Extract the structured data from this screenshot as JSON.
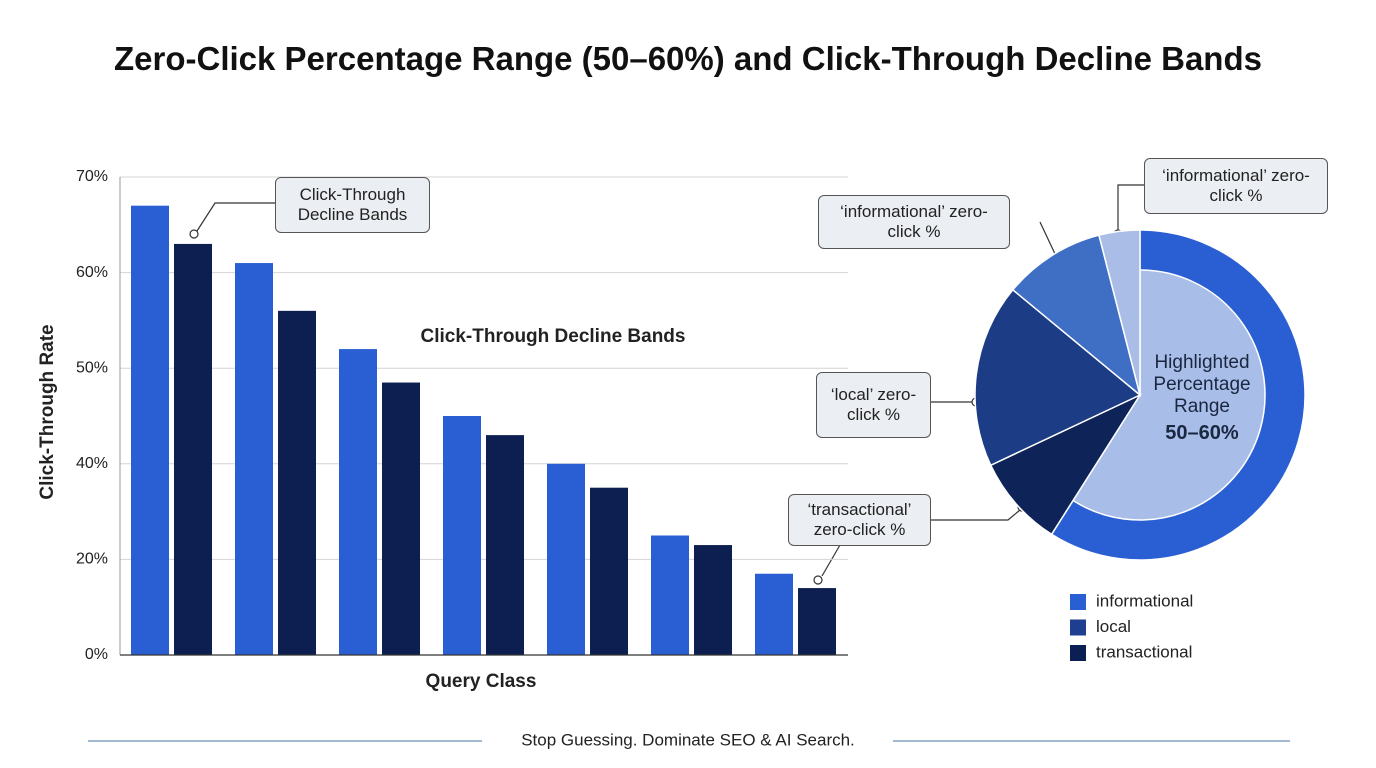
{
  "title": "Zero-Click Percentage Range (50–60%) and Click-Through Decline Bands",
  "footer": "Stop Guessing. Dominate SEO & AI Search.",
  "chart_data": [
    {
      "type": "bar",
      "inner_title": "Click-Through Decline Bands",
      "ylabel": "Click-Through Rate",
      "xlabel": "Query Class",
      "categories": [
        null,
        null,
        null,
        null,
        null,
        null,
        null
      ],
      "series": [
        {
          "color": "#2a5fd3",
          "values": [
            67,
            61,
            52,
            45,
            40,
            25,
            17
          ]
        },
        {
          "color": "#0c1f50",
          "values": [
            63,
            56,
            48.5,
            43,
            35,
            23,
            14
          ]
        }
      ],
      "ylim": [
        0,
        70
      ],
      "yticks": [
        {
          "value": 0,
          "label": "0%"
        },
        {
          "value": 20,
          "label": "20%"
        },
        {
          "value": 40,
          "label": "40%"
        },
        {
          "value": 50,
          "label": "50%"
        },
        {
          "value": 60,
          "label": "60%"
        },
        {
          "value": 70,
          "label": "70%"
        }
      ],
      "grid": true,
      "annotations": [
        "Click-Through Decline Bands"
      ]
    },
    {
      "type": "pie",
      "values": [
        59,
        9,
        18,
        10,
        4
      ],
      "colors": [
        "#2a5fd3",
        "#0e2358",
        "#1d3c86",
        "#3f6fc5",
        "#a9bde6"
      ],
      "highlight": 0,
      "highlight_color": "#a8bde8",
      "center_label": "Highlighted Percentage Range",
      "center_value": "50–60%",
      "legend": [
        {
          "name": "informational",
          "color": "#2a5fd3"
        },
        {
          "name": "local",
          "color": "#1e3f8f"
        },
        {
          "name": "transactional",
          "color": "#0b1f55"
        }
      ],
      "annotations": [
        "‘informational’ zero-click %",
        "‘informational’ zero-click %",
        "‘local’ zero-click %",
        "‘transactional’ zero-click %"
      ]
    }
  ]
}
